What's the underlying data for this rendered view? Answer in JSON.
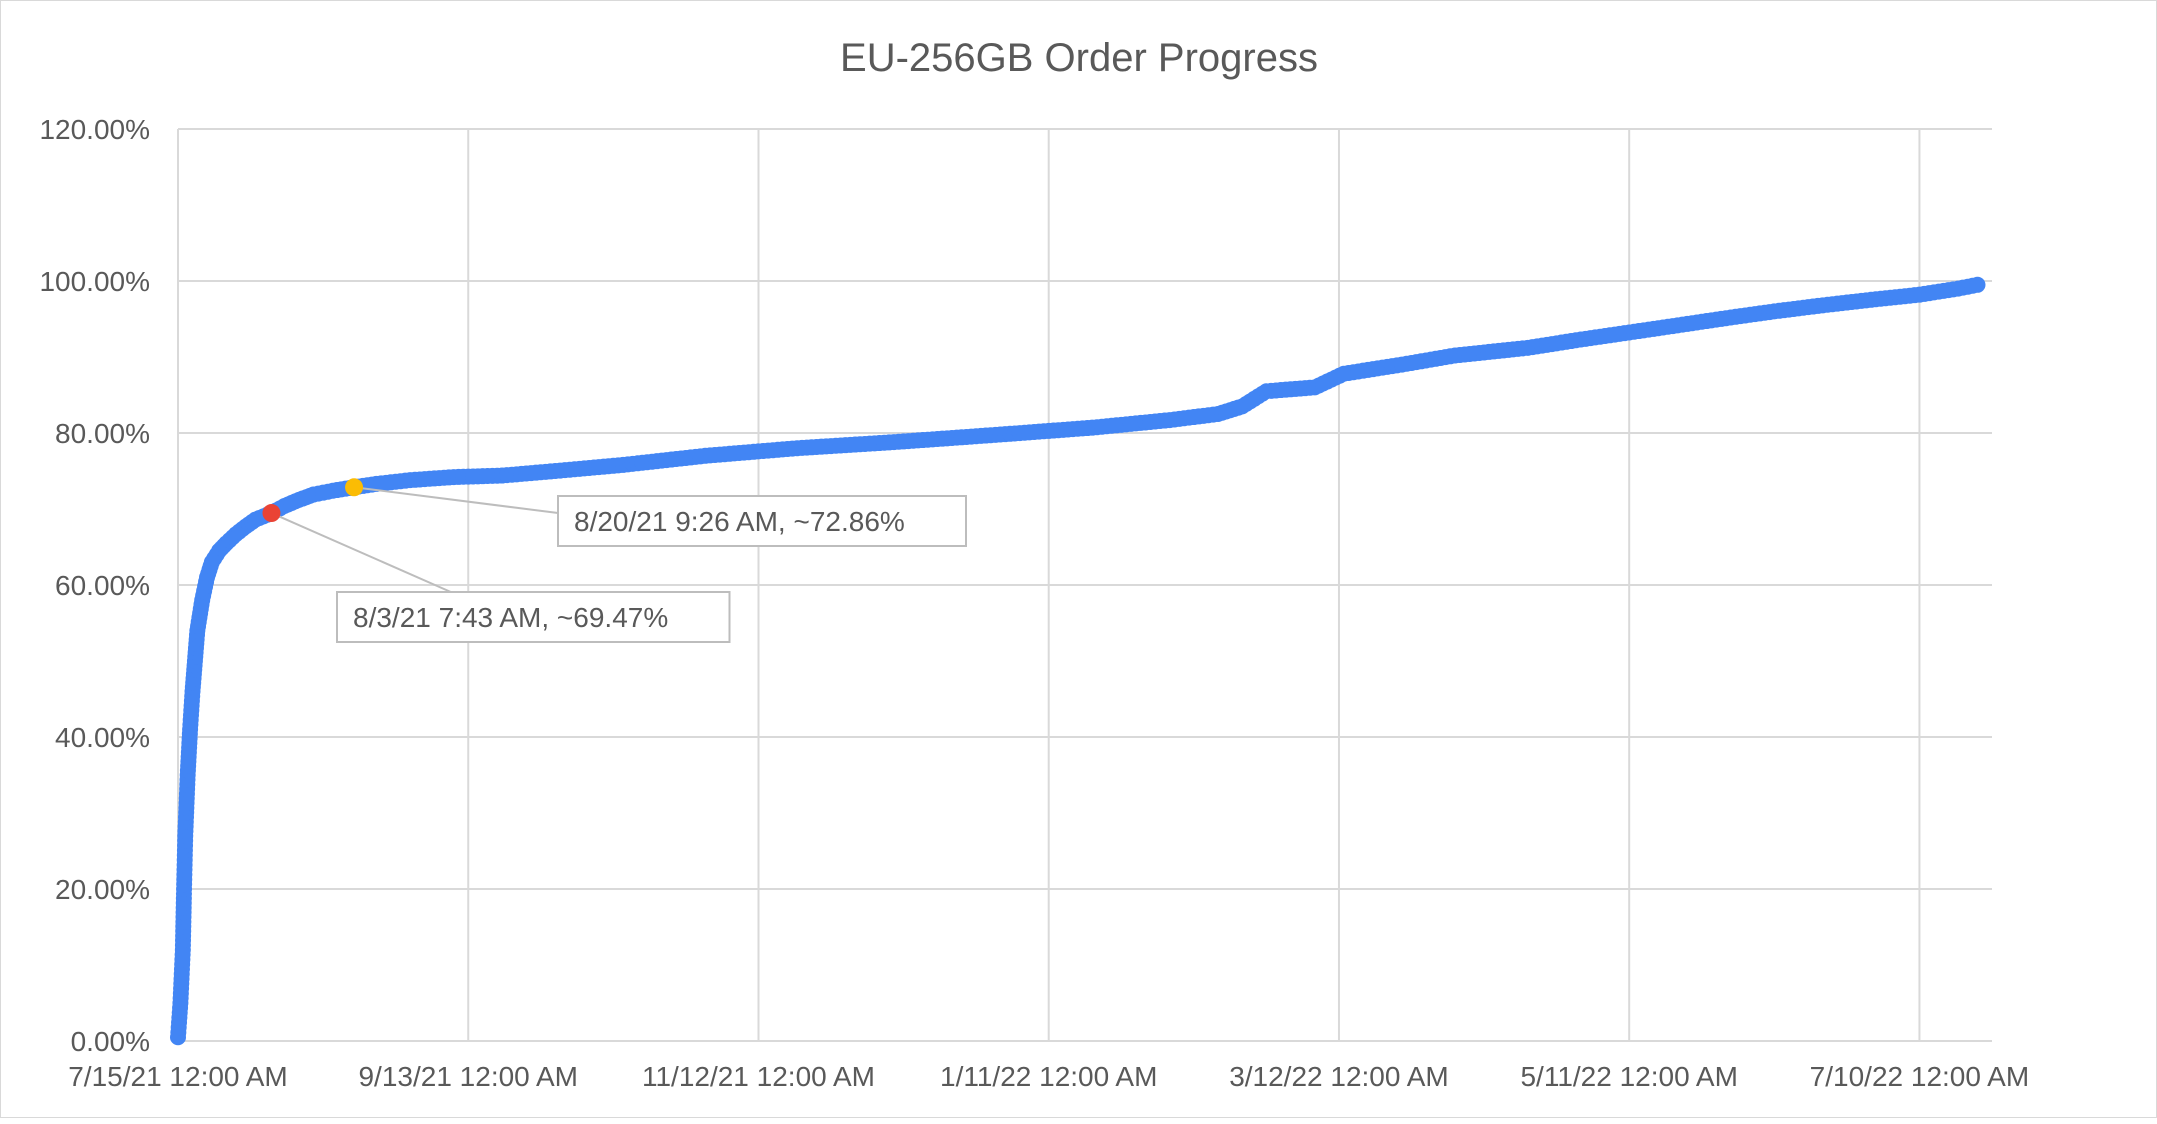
{
  "chart_data": {
    "type": "scatter",
    "title": "EU-256GB Order Progress",
    "xlabel": "",
    "ylabel": "",
    "x_ticks": [
      "7/15/21 12:00 AM",
      "9/13/21 12:00 AM",
      "11/12/21 12:00 AM",
      "1/11/22 12:00 AM",
      "3/12/22 12:00 AM",
      "5/11/22 12:00 AM",
      "7/10/22 12:00 AM"
    ],
    "y_ticks": [
      "0.00%",
      "20.00%",
      "40.00%",
      "60.00%",
      "80.00%",
      "100.00%",
      "120.00%"
    ],
    "xlim": [
      "2021-07-15T00:00",
      "2022-07-25T00:00"
    ],
    "ylim": [
      0,
      120
    ],
    "grid": true,
    "legend": "none",
    "series": [
      {
        "color": "#4285f4",
        "points": [
          [
            "2021-07-15T00:00",
            0.5
          ],
          [
            "2021-07-15T12:00",
            5
          ],
          [
            "2021-07-16T00:00",
            12
          ],
          [
            "2021-07-16T06:00",
            20
          ],
          [
            "2021-07-16T12:00",
            27
          ],
          [
            "2021-07-17T00:00",
            35
          ],
          [
            "2021-07-17T12:00",
            41
          ],
          [
            "2021-07-18T00:00",
            46
          ],
          [
            "2021-07-18T12:00",
            50
          ],
          [
            "2021-07-19T00:00",
            54
          ],
          [
            "2021-07-20T00:00",
            58
          ],
          [
            "2021-07-21T00:00",
            61
          ],
          [
            "2021-07-22T00:00",
            63
          ],
          [
            "2021-07-23T12:00",
            64.5
          ],
          [
            "2021-07-25T00:00",
            65.5
          ],
          [
            "2021-07-27T00:00",
            66.7
          ],
          [
            "2021-07-29T00:00",
            67.7
          ],
          [
            "2021-07-31T00:00",
            68.6
          ],
          [
            "2021-08-03T07:43",
            69.47
          ],
          [
            "2021-08-06T00:00",
            70.4
          ],
          [
            "2021-08-09T00:00",
            71.2
          ],
          [
            "2021-08-12T00:00",
            71.9
          ],
          [
            "2021-08-16T00:00",
            72.4
          ],
          [
            "2021-08-20T09:26",
            72.86
          ],
          [
            "2021-08-25T00:00",
            73.3
          ],
          [
            "2021-09-01T00:00",
            73.8
          ],
          [
            "2021-09-10T00:00",
            74.2
          ],
          [
            "2021-09-20T00:00",
            74.4
          ],
          [
            "2021-10-01T00:00",
            75.0
          ],
          [
            "2021-10-15T00:00",
            75.8
          ],
          [
            "2021-11-01T00:00",
            77.0
          ],
          [
            "2021-11-20T00:00",
            78.0
          ],
          [
            "2021-12-10T00:00",
            78.8
          ],
          [
            "2022-01-01T00:00",
            79.8
          ],
          [
            "2022-01-20T00:00",
            80.7
          ],
          [
            "2022-02-05T00:00",
            81.7
          ],
          [
            "2022-02-15T00:00",
            82.5
          ],
          [
            "2022-02-20T00:00",
            83.5
          ],
          [
            "2022-02-25T00:00",
            85.5
          ],
          [
            "2022-03-07T00:00",
            86.0
          ],
          [
            "2022-03-13T00:00",
            87.8
          ],
          [
            "2022-03-25T00:00",
            89.0
          ],
          [
            "2022-04-05T00:00",
            90.2
          ],
          [
            "2022-04-20T00:00",
            91.2
          ],
          [
            "2022-05-01T00:00",
            92.3
          ],
          [
            "2022-05-15T00:00",
            93.6
          ],
          [
            "2022-06-01T00:00",
            95.2
          ],
          [
            "2022-06-10T00:00",
            96.0
          ],
          [
            "2022-06-20T00:00",
            96.8
          ],
          [
            "2022-07-01T00:00",
            97.6
          ],
          [
            "2022-07-10T00:00",
            98.2
          ],
          [
            "2022-07-18T00:00",
            99.0
          ],
          [
            "2022-07-22T00:00",
            99.5
          ]
        ]
      }
    ],
    "annotations": [
      {
        "x": "2021-08-03T07:43",
        "y": 69.47,
        "label": "8/3/21 7:43 AM, ~69.47%",
        "color": "#ea4335",
        "box": "below-right"
      },
      {
        "x": "2021-08-20T09:26",
        "y": 72.86,
        "label": "8/20/21 9:26 AM, ~72.86%",
        "color": "#fbbc04",
        "box": "right"
      }
    ]
  }
}
